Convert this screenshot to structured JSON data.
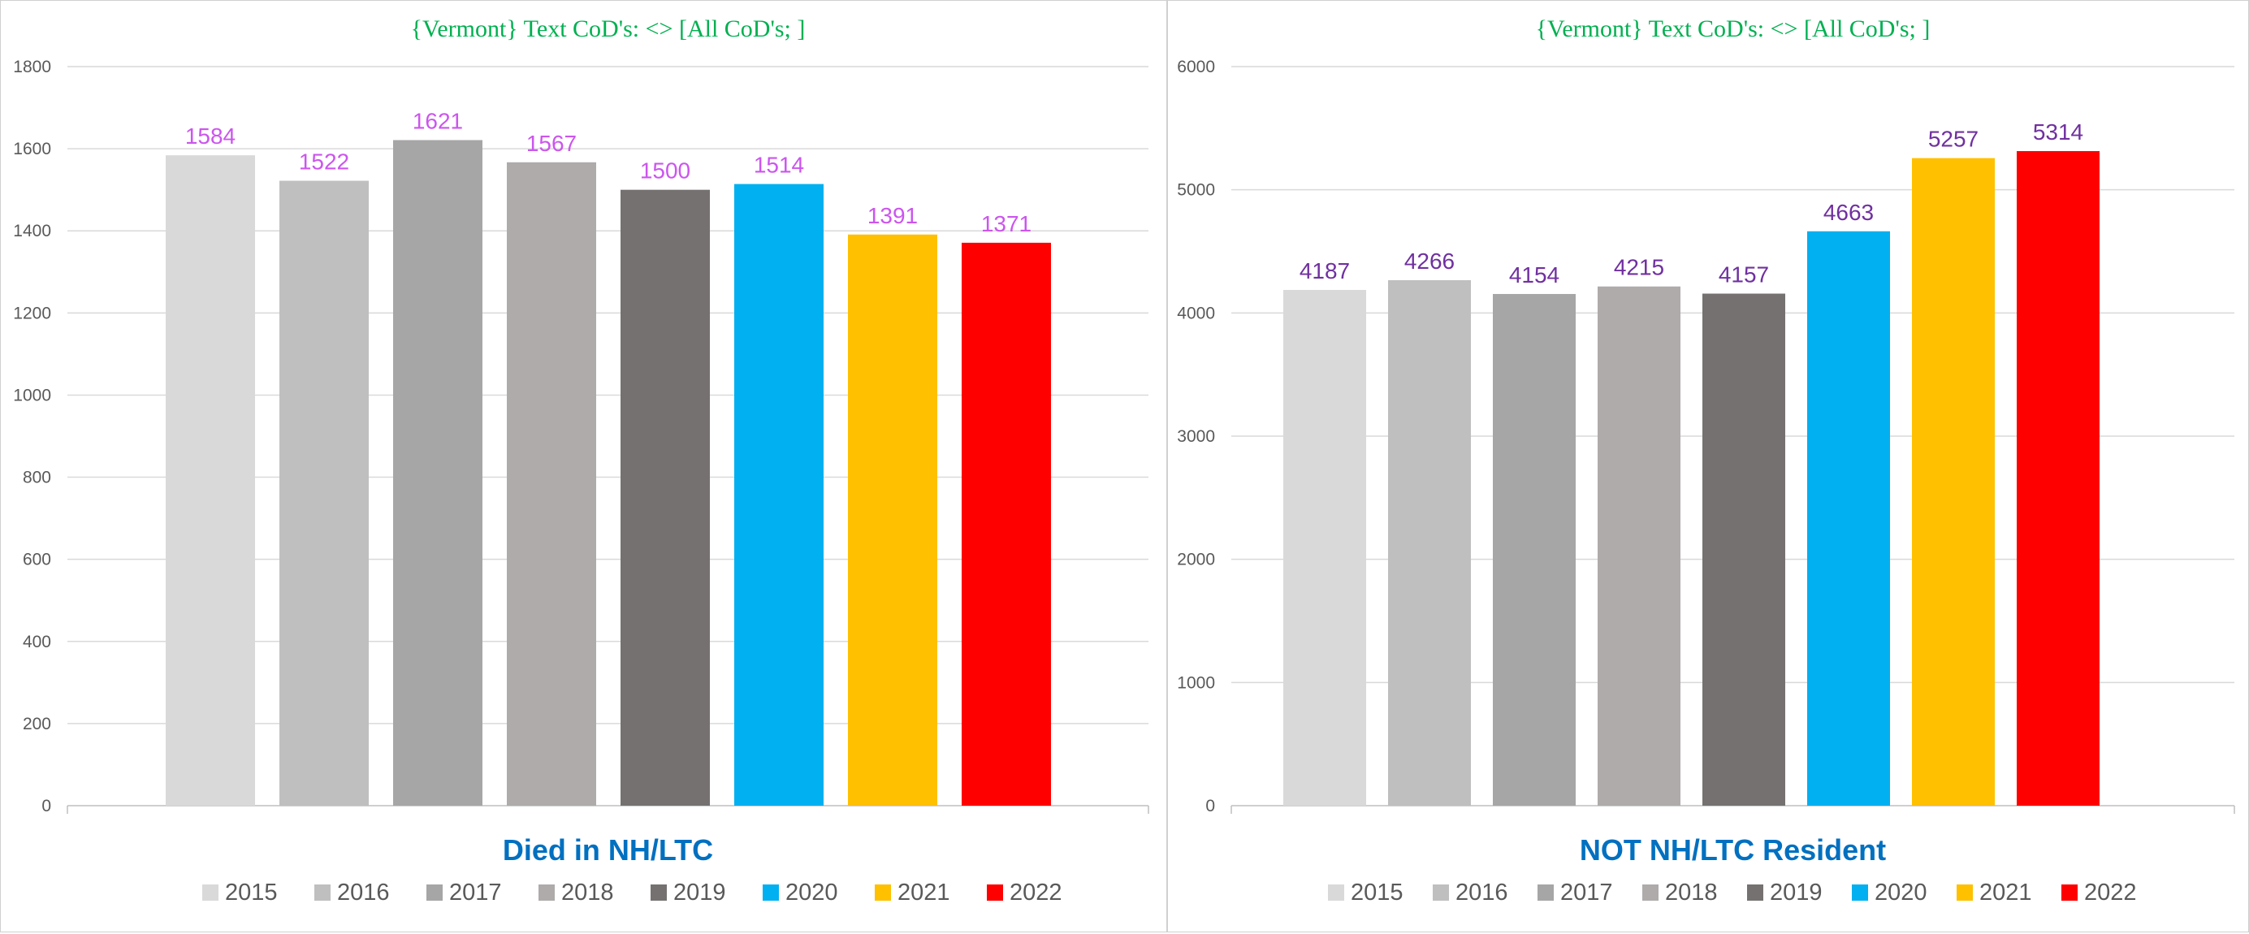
{
  "chart_data": [
    {
      "type": "bar",
      "title": "{Vermont}   Text CoD's: <> [All CoD's; ]",
      "xlabel": "Died  in NH/LTC",
      "ylabel": "",
      "categories": [
        "2015",
        "2016",
        "2017",
        "2018",
        "2019",
        "2020",
        "2021",
        "2022"
      ],
      "values": [
        1584,
        1522,
        1621,
        1567,
        1500,
        1514,
        1391,
        1371
      ],
      "ylim": [
        0,
        1800
      ],
      "yticks": [
        0,
        200,
        400,
        600,
        800,
        1000,
        1200,
        1400,
        1600,
        1800
      ],
      "colors": [
        "#d9d9d9",
        "#bfbfbf",
        "#a6a6a6",
        "#afabab",
        "#767171",
        "#00b0f0",
        "#ffc000",
        "#ff0000"
      ],
      "label_color": "#cc55ee",
      "legend": "bottom",
      "grid": true
    },
    {
      "type": "bar",
      "title": "{Vermont}   Text CoD's: <> [All CoD's; ]",
      "xlabel": "NOT NH/LTC Resident",
      "ylabel": "",
      "categories": [
        "2015",
        "2016",
        "2017",
        "2018",
        "2019",
        "2020",
        "2021",
        "2022"
      ],
      "values": [
        4187,
        4266,
        4154,
        4215,
        4157,
        4663,
        5257,
        5314
      ],
      "ylim": [
        0,
        6000
      ],
      "yticks": [
        0,
        1000,
        2000,
        3000,
        4000,
        5000,
        6000
      ],
      "colors": [
        "#d9d9d9",
        "#bfbfbf",
        "#a6a6a6",
        "#afabab",
        "#767171",
        "#00b0f0",
        "#ffc000",
        "#ff0000"
      ],
      "label_color": "#7030a0",
      "legend": "bottom",
      "grid": true
    }
  ]
}
